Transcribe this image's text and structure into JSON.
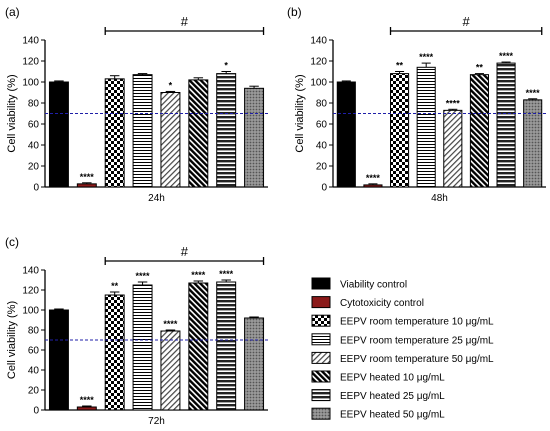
{
  "chart_data": [
    {
      "type": "bar",
      "panel_label": "(a)",
      "xlabel": "24h",
      "ylabel": "Cell viability (%)",
      "ylim": [
        0,
        140
      ],
      "yticks": [
        0,
        20,
        40,
        60,
        80,
        100,
        120,
        140
      ],
      "reference_line": 70,
      "group_marker": "#",
      "values": [
        100,
        3,
        103,
        107,
        90,
        102,
        108,
        94
      ],
      "errors": [
        1,
        1,
        3,
        1,
        1,
        2,
        2,
        2
      ],
      "significance": [
        "",
        "****",
        "",
        "",
        "*",
        "",
        "*",
        ""
      ]
    },
    {
      "type": "bar",
      "panel_label": "(b)",
      "xlabel": "48h",
      "ylabel": "Cell viability (%)",
      "ylim": [
        0,
        140
      ],
      "yticks": [
        0,
        20,
        40,
        60,
        80,
        100,
        120,
        140
      ],
      "reference_line": 70,
      "group_marker": "#",
      "values": [
        100,
        2,
        108,
        114,
        73,
        107,
        118,
        83
      ],
      "errors": [
        1,
        1,
        2,
        4,
        1,
        1,
        1,
        1
      ],
      "significance": [
        "",
        "****",
        "**",
        "****",
        "****",
        "**",
        "****",
        "****"
      ]
    },
    {
      "type": "bar",
      "panel_label": "(c)",
      "xlabel": "72h",
      "ylabel": "Cell viability (%)",
      "ylim": [
        0,
        140
      ],
      "yticks": [
        0,
        20,
        40,
        60,
        80,
        100,
        120,
        140
      ],
      "reference_line": 70,
      "group_marker": "#",
      "values": [
        100,
        3,
        115,
        125,
        79,
        127,
        128,
        92
      ],
      "errors": [
        1,
        1,
        3,
        3,
        1,
        2,
        2,
        1
      ],
      "significance": [
        "",
        "****",
        "**",
        "****",
        "****",
        "****",
        "****",
        ""
      ]
    }
  ],
  "legend": [
    {
      "label": "Viability control",
      "pattern": "solid-black"
    },
    {
      "label": "Cytotoxicity control",
      "pattern": "solid-red"
    },
    {
      "label": "EEPV room temperature 10 μg/mL",
      "pattern": "checker"
    },
    {
      "label": "EEPV room temperature 25 μg/mL",
      "pattern": "hlines-thin"
    },
    {
      "label": "EEPV room temperature 50 μg/mL",
      "pattern": "diag-light"
    },
    {
      "label": "EEPV heated 10 μg/mL",
      "pattern": "diag-dark"
    },
    {
      "label": "EEPV heated 25 μg/mL",
      "pattern": "hlines-thick"
    },
    {
      "label": "EEPV heated 50 μg/mL",
      "pattern": "dots"
    }
  ],
  "colors": {
    "viability": "#000000",
    "cytotoxicity": "#8b1a1a",
    "reference_line": "#1f1fa8"
  }
}
